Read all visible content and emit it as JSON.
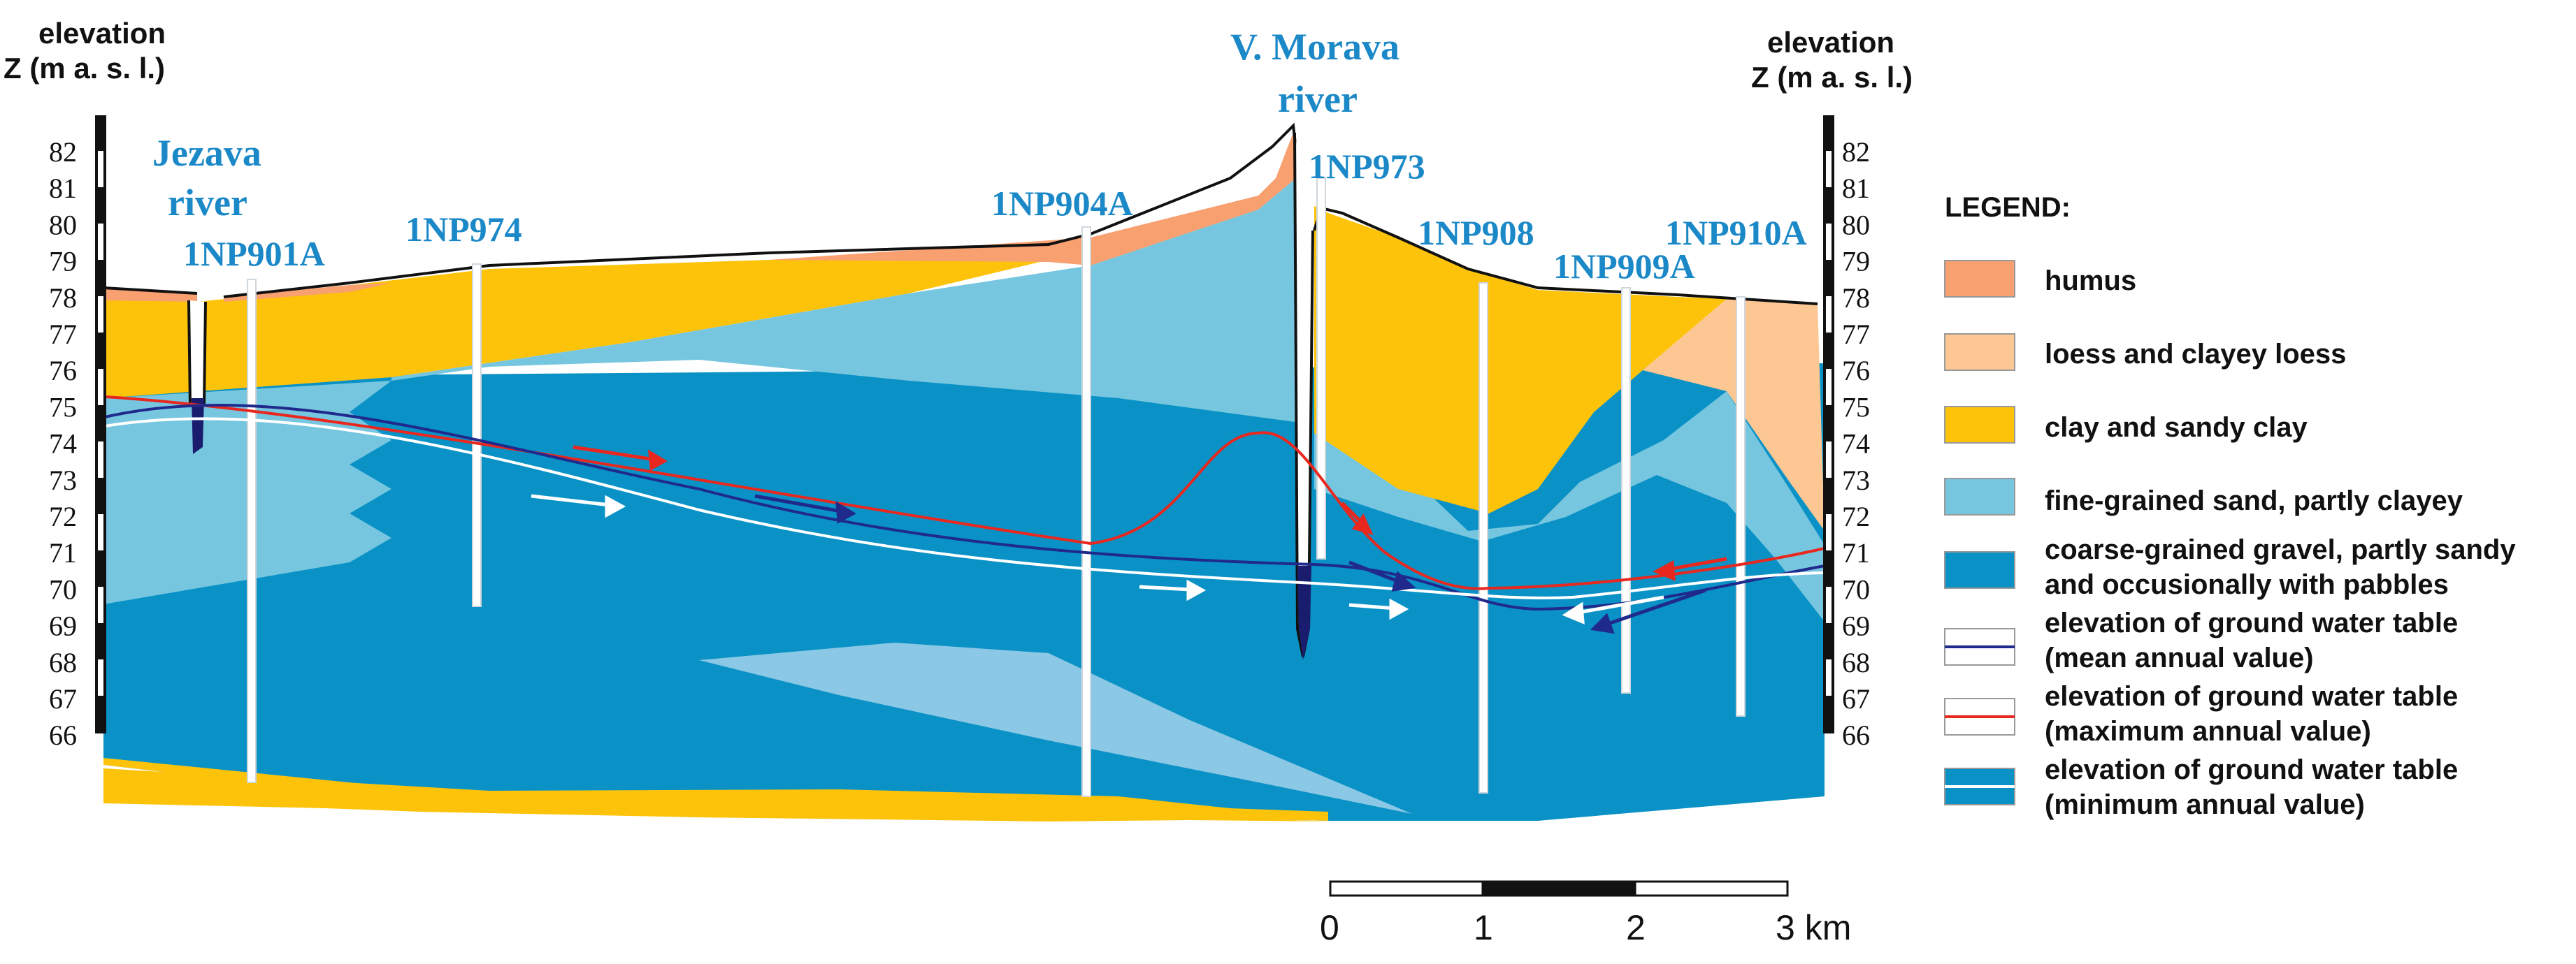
{
  "axes": {
    "left_header": [
      "elevation",
      "Z (m a. s. l.)"
    ],
    "right_header": [
      "elevation",
      "Z (m a. s. l.)"
    ],
    "ticks": [
      "82",
      "81",
      "80",
      "79",
      "78",
      "77",
      "76",
      "75",
      "74",
      "73",
      "72",
      "71",
      "70",
      "69",
      "68",
      "67",
      "66"
    ]
  },
  "rivers": {
    "jezava": [
      "Jezava",
      "river"
    ],
    "morava": [
      "V. Morava",
      "river"
    ]
  },
  "wells": [
    "1NP901A",
    "1NP974",
    "1NP904A",
    "1NP973",
    "1NP908",
    "1NP909A",
    "1NP910A"
  ],
  "legend": {
    "title": "LEGEND:",
    "items": [
      {
        "lines": [
          "humus"
        ],
        "color": "#f9a070"
      },
      {
        "lines": [
          "loess and clayey loess"
        ],
        "color": "#fcc793"
      },
      {
        "lines": [
          "clay and sandy clay"
        ],
        "color": "#fdc30a"
      },
      {
        "lines": [
          "fine-grained sand, partly clayey"
        ],
        "color": "#76c6e0"
      },
      {
        "lines": [
          "coarse-grained gravel, partly sandy",
          "and occusionally with pabbles"
        ],
        "color": "#0a92c6"
      },
      {
        "lines": [
          "elevation of ground water table",
          "(mean annual value)"
        ],
        "color": "#1f2a8c"
      },
      {
        "lines": [
          "elevation of ground water table",
          "(maximum annual value)"
        ],
        "color": "#e8281e"
      },
      {
        "lines": [
          "elevation of ground water table",
          "(minimum annual value)"
        ],
        "color": "#ffffff"
      }
    ]
  },
  "scale_bar": {
    "labels": [
      "0",
      "1",
      "2",
      "3 km"
    ]
  }
}
